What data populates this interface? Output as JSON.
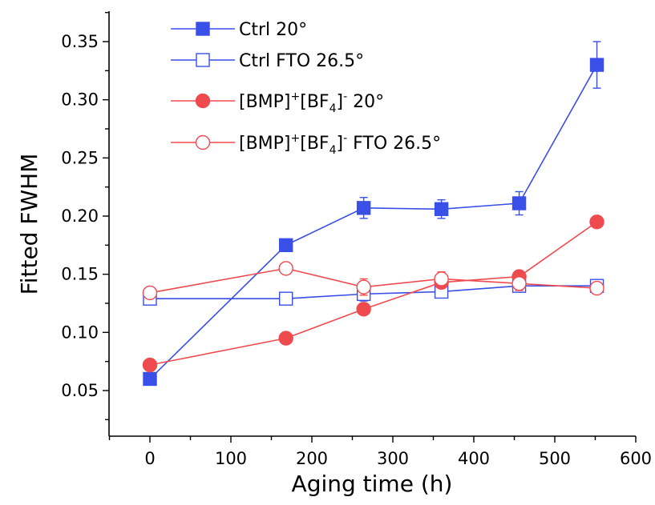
{
  "chart_data": {
    "type": "line",
    "title": "",
    "xlabel": "Aging time (h)",
    "ylabel": "Fitted FWHM",
    "xlim": [
      -50,
      600
    ],
    "ylim": [
      0.025,
      0.375
    ],
    "xticks": [
      0,
      100,
      200,
      300,
      400,
      500,
      600
    ],
    "yticks": [
      0.05,
      0.1,
      0.15,
      0.2,
      0.25,
      0.3,
      0.35
    ],
    "ytick_labels": [
      "0.05",
      "0.10",
      "0.15",
      "0.20",
      "0.25",
      "0.30",
      "0.35"
    ],
    "grid": false,
    "legend_position": "top-left",
    "series": [
      {
        "name": "Ctrl 20°",
        "legend": {
          "main": "Ctrl 20°"
        },
        "color": "#3a4ee8",
        "marker": "square",
        "filled": true,
        "x": [
          0,
          168,
          264,
          360,
          456,
          552
        ],
        "y": [
          0.06,
          0.175,
          0.207,
          0.206,
          0.211,
          0.33
        ],
        "err": [
          0.003,
          0.004,
          0.009,
          0.008,
          0.01,
          0.02
        ]
      },
      {
        "name": "Ctrl FTO 26.5°",
        "legend": {
          "main": "Ctrl FTO 26.5°"
        },
        "color": "#3a4ee8",
        "marker": "square",
        "filled": false,
        "x": [
          0,
          168,
          264,
          360,
          456,
          552
        ],
        "y": [
          0.129,
          0.129,
          0.133,
          0.135,
          0.14,
          0.14
        ],
        "err": [
          0.002,
          0.005,
          0.006,
          0.005,
          0.004,
          0.005
        ]
      },
      {
        "name": "[BMP]+[BF4]- 20°",
        "legend": {
          "a": "[BMP]",
          "b": "+",
          "c": "[BF",
          "d": "4",
          "e": "]",
          "f": "-",
          "g": " 20°"
        },
        "color": "#ef4b4f",
        "marker": "circle",
        "filled": true,
        "x": [
          0,
          168,
          264,
          360,
          456,
          552
        ],
        "y": [
          0.072,
          0.095,
          0.12,
          0.143,
          0.148,
          0.195
        ],
        "err": [
          0.002,
          0.002,
          0.003,
          0.004,
          0.004,
          0.004
        ]
      },
      {
        "name": "[BMP]+[BF4]- FTO 26.5°",
        "legend": {
          "a": "[BMP]",
          "b": "+",
          "c": "[BF",
          "d": "4",
          "e": "]",
          "f": "-",
          "g": " FTO 26.5°"
        },
        "color": "#ef4b4f",
        "marker": "circle",
        "filled": false,
        "x": [
          0,
          168,
          264,
          360,
          456,
          552
        ],
        "y": [
          0.134,
          0.155,
          0.139,
          0.146,
          0.142,
          0.138
        ],
        "err": [
          0.004,
          0.004,
          0.007,
          0.006,
          0.006,
          0.005
        ]
      }
    ]
  }
}
